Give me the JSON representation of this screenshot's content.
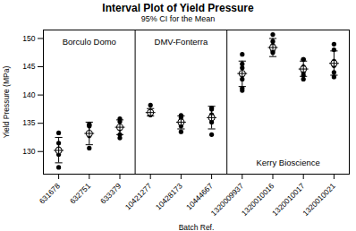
{
  "chart_data": {
    "type": "interval",
    "title": "Interval Plot of Yield Pressure",
    "subtitle": "95% CI for the Mean",
    "x_label": "Batch Ref.",
    "y_label": "Yield Pressure (MPa)",
    "categories": [
      "631678",
      "632751",
      "633379",
      "10421277",
      "10428173",
      "10444667",
      "1320009937",
      "1320010016",
      "1320010017",
      "1320010021"
    ],
    "panels": [
      {
        "name": "Borculo Domo",
        "categories": [
          "631678",
          "632751",
          "633379"
        ]
      },
      {
        "name": "DMV-Fonterra",
        "categories": [
          "10421277",
          "10428173",
          "10444667"
        ]
      },
      {
        "name": "Kerry Bioscience",
        "categories": [
          "1320009937",
          "1320010016",
          "1320010017",
          "1320010021"
        ]
      }
    ],
    "points": [
      [
        133.3,
        131.5,
        130.5,
        130,
        129.5,
        127.2
      ],
      [
        134.8,
        134.5,
        134.7,
        133,
        132.8,
        130.6
      ],
      [
        135.8,
        135.3,
        134.3,
        134,
        133,
        132.4
      ],
      [
        138.2,
        137.2,
        136.8,
        136.5,
        136.5,
        136.8
      ],
      [
        136.4,
        136,
        135.2,
        134.5,
        133.5,
        135.4
      ],
      [
        137.7,
        137.5,
        136.5,
        135.2,
        133,
        136.3
      ],
      [
        147.2,
        145.5,
        144.8,
        143.5,
        142.8,
        141.2,
        140.8
      ],
      [
        150.7,
        149.5,
        148.8,
        148.3,
        148,
        147.8,
        147.5
      ],
      [
        146.3,
        146.3,
        145,
        144.7,
        144,
        143.5,
        142.8
      ],
      [
        149,
        148,
        146,
        145.5,
        145.2,
        144,
        143.2
      ]
    ],
    "mean": [
      130.2,
      133.2,
      134.3,
      136.9,
      135.2,
      136,
      143.8,
      148.4,
      144.6,
      145.6
    ],
    "ci_lower": [
      128,
      131.2,
      133,
      136.3,
      134,
      134,
      141.5,
      146.8,
      143.3,
      143.5
    ],
    "ci_upper": [
      132.5,
      135.2,
      135.6,
      137.6,
      136.3,
      138,
      146,
      150,
      146,
      147.8
    ],
    "color": "#000000",
    "ylim": [
      126,
      151.5
    ],
    "yticks": [
      130,
      135,
      140,
      145,
      150
    ],
    "grid": false
  }
}
